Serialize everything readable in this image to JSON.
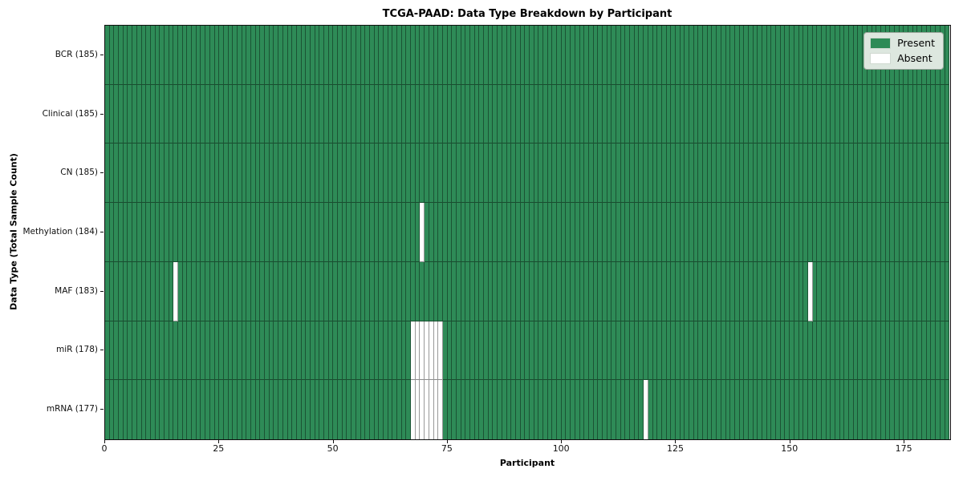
{
  "chart_data": {
    "type": "heatmap",
    "title": "TCGA-PAAD: Data Type Breakdown by Participant",
    "xlabel": "Participant",
    "ylabel": "Data Type (Total Sample Count)",
    "n_participants": 185,
    "x_range": [
      0,
      185
    ],
    "x_ticks": [
      0,
      25,
      50,
      75,
      100,
      125,
      150,
      175
    ],
    "grid": "per-cell edges",
    "legend_position": "upper right",
    "legend": [
      {
        "label": "Present",
        "color": "#2e8b57"
      },
      {
        "label": "Absent",
        "color": "#ffffff"
      }
    ],
    "rows": [
      {
        "label": "BCR (185)",
        "name": "BCR",
        "total": 185,
        "absent_participants": []
      },
      {
        "label": "Clinical (185)",
        "name": "Clinical",
        "total": 185,
        "absent_participants": []
      },
      {
        "label": "CN (185)",
        "name": "CN",
        "total": 185,
        "absent_participants": []
      },
      {
        "label": "Methylation (184)",
        "name": "Methylation",
        "total": 184,
        "absent_participants": [
          69
        ]
      },
      {
        "label": "MAF (183)",
        "name": "MAF",
        "total": 183,
        "absent_participants": [
          15,
          154
        ]
      },
      {
        "label": "miR (178)",
        "name": "miR",
        "total": 178,
        "absent_participants": [
          67,
          68,
          69,
          70,
          71,
          72,
          73
        ]
      },
      {
        "label": "mRNA (177)",
        "name": "mRNA",
        "total": 177,
        "absent_participants": [
          67,
          68,
          69,
          70,
          71,
          72,
          73,
          118
        ]
      }
    ]
  },
  "colors": {
    "present": "#2e8b57",
    "absent": "#ffffff",
    "frame": "#101010",
    "legend_bg": "#dde7df",
    "legend_border": "#96a398"
  }
}
